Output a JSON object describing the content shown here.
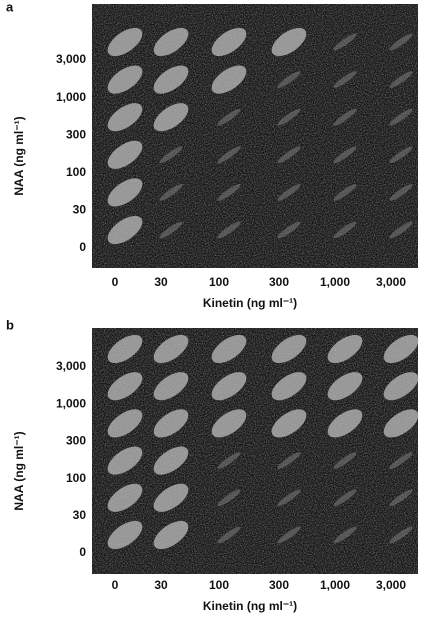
{
  "panels": [
    {
      "label": "a",
      "y_axis_title": "NAA (ng ml⁻¹)",
      "y_ticks": [
        "3,000",
        "1,000",
        "300",
        "100",
        "30",
        "0"
      ],
      "x_ticks": [
        "0",
        "30",
        "100",
        "300",
        "1,000",
        "3,000"
      ],
      "x_axis_title": "Kinetin (ng ml⁻¹)"
    },
    {
      "label": "b",
      "y_axis_title": "NAA (ng ml⁻¹)",
      "y_ticks": [
        "3,000",
        "1,000",
        "300",
        "100",
        "30",
        "0"
      ],
      "x_ticks": [
        "0",
        "30",
        "100",
        "300",
        "1,000",
        "3,000"
      ],
      "x_axis_title": "Kinetin (ng ml⁻¹)"
    }
  ]
}
